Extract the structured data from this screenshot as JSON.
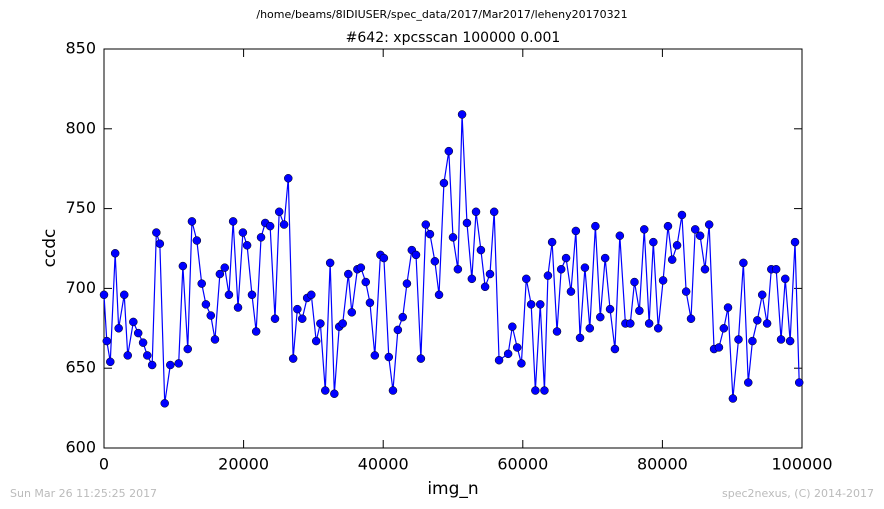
{
  "chart_data": {
    "type": "line",
    "suptitle": "/home/beams/8IDIUSER/spec_data/2017/Mar2017/leheny20170321",
    "title": "#642: xpcsscan 100000 0.001",
    "x_label": "img_n",
    "y_label": "ccdc",
    "footer_left": "Sun Mar 26 11:25:25 2017",
    "footer_right": "spec2nexus, (C) 2014-2017",
    "color": "#0000ff",
    "xlim": [
      0,
      100000
    ],
    "xticks": [
      0,
      20000,
      40000,
      60000,
      80000,
      100000
    ],
    "ylim": [
      600,
      850
    ],
    "yticks": [
      600,
      650,
      700,
      750,
      800,
      850
    ],
    "x": [
      0,
      400,
      900,
      1600,
      2100,
      2900,
      3400,
      4200,
      4900,
      5600,
      6200,
      6900,
      7500,
      8000,
      8700,
      9500,
      10700,
      11300,
      12000,
      12600,
      13300,
      14000,
      14600,
      15300,
      15900,
      16600,
      17300,
      17900,
      18500,
      19200,
      19900,
      20500,
      21200,
      21800,
      22500,
      23100,
      23800,
      24500,
      25100,
      25800,
      26400,
      27100,
      27700,
      28400,
      29100,
      29700,
      30400,
      31000,
      31700,
      32400,
      33000,
      33700,
      34200,
      35000,
      35500,
      36300,
      36800,
      37500,
      38100,
      38800,
      39600,
      40100,
      40800,
      41400,
      42100,
      42800,
      43400,
      44100,
      44700,
      45400,
      46100,
      46700,
      47400,
      48000,
      48700,
      49400,
      50000,
      50700,
      51300,
      52000,
      52700,
      53300,
      54000,
      54600,
      55300,
      55900,
      56600,
      57900,
      58500,
      59200,
      59800,
      60500,
      61200,
      61800,
      62500,
      63100,
      63600,
      64200,
      64900,
      65500,
      66200,
      66900,
      67600,
      68200,
      68900,
      69600,
      70400,
      71100,
      71800,
      72500,
      73200,
      73900,
      74700,
      75400,
      76000,
      76700,
      77400,
      78100,
      78700,
      79400,
      80100,
      80800,
      81400,
      82100,
      82800,
      83400,
      84100,
      84700,
      85400,
      86100,
      86700,
      87400,
      88100,
      88800,
      89400,
      90100,
      90900,
      91600,
      92300,
      92900,
      93600,
      94300,
      95000,
      95600,
      96300,
      97000,
      97600,
      98300,
      99000,
      99600
    ],
    "values": [
      696,
      667,
      654,
      722,
      675,
      696,
      658,
      679,
      672,
      666,
      658,
      652,
      735,
      728,
      628,
      652,
      653,
      714,
      662,
      742,
      730,
      703,
      690,
      683,
      668,
      709,
      713,
      696,
      742,
      688,
      735,
      727,
      696,
      673,
      732,
      741,
      739,
      681,
      748,
      740,
      769,
      656,
      687,
      681,
      694,
      696,
      667,
      678,
      636,
      716,
      634,
      676,
      678,
      709,
      685,
      712,
      713,
      704,
      691,
      658,
      721,
      719,
      657,
      636,
      674,
      682,
      703,
      724,
      721,
      656,
      740,
      734,
      717,
      696,
      766,
      786,
      732,
      712,
      809,
      741,
      706,
      748,
      724,
      701,
      709,
      748,
      655,
      659,
      676,
      663,
      653,
      706,
      690,
      636,
      690,
      636,
      708,
      729,
      673,
      712,
      719,
      698,
      736,
      669,
      713,
      675,
      739,
      682,
      719,
      687,
      662,
      733,
      678,
      678,
      704,
      686,
      737,
      678,
      729,
      675,
      705,
      739,
      718,
      727,
      746,
      698,
      681,
      737,
      733,
      712,
      740,
      662,
      663,
      675,
      688,
      631,
      668,
      716,
      641,
      667,
      680,
      696,
      678,
      712,
      712,
      668,
      706,
      667,
      729,
      641
    ]
  }
}
